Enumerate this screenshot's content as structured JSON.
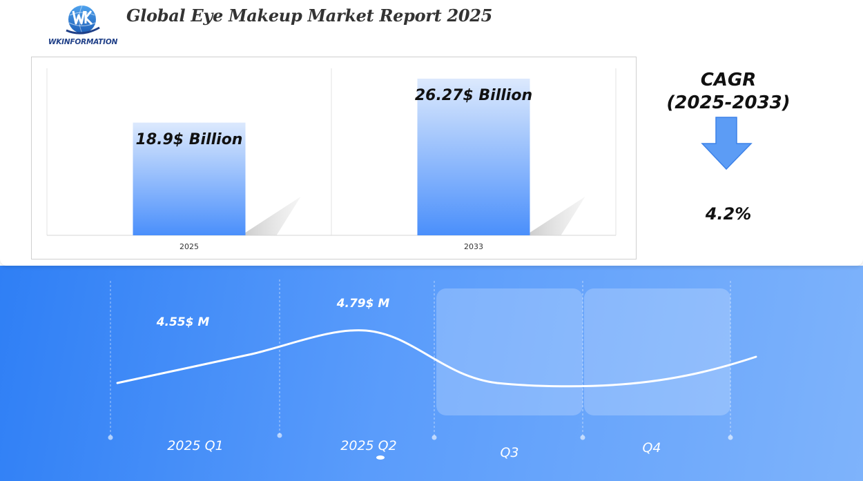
{
  "header": {
    "logo_text": "WKINFORMATION",
    "title": "Global Eye Makeup Market Report 2025"
  },
  "colors": {
    "bar_top": "#dce9fd",
    "bar_bottom": "#4a8ffb",
    "arrow": "#5c9cf5",
    "panel_left": "#2f7ff5",
    "panel_right": "#7eb3fb"
  },
  "cagr": {
    "title_line1": "CAGR",
    "title_line2": "(2025-2033)",
    "value": "4.2%",
    "arrow_icon": "arrow-down-icon"
  },
  "chart_data": [
    {
      "type": "bar",
      "categories": [
        "2025",
        "2033"
      ],
      "values": [
        18.9,
        26.27
      ],
      "data_labels": [
        "18.9$ Billion",
        "26.27$ Billion"
      ],
      "unit": "$ Billion",
      "ylim": [
        0,
        28
      ],
      "grid": false,
      "legend": "none"
    },
    {
      "type": "line",
      "categories": [
        "2025 Q1",
        "2025 Q2",
        "Q3",
        "Q4"
      ],
      "values": [
        4.55,
        4.79,
        null,
        null
      ],
      "data_labels": [
        "4.55$ M",
        "4.79$ M",
        "",
        ""
      ],
      "unit": "$ M",
      "grid": false,
      "legend": "none"
    }
  ]
}
